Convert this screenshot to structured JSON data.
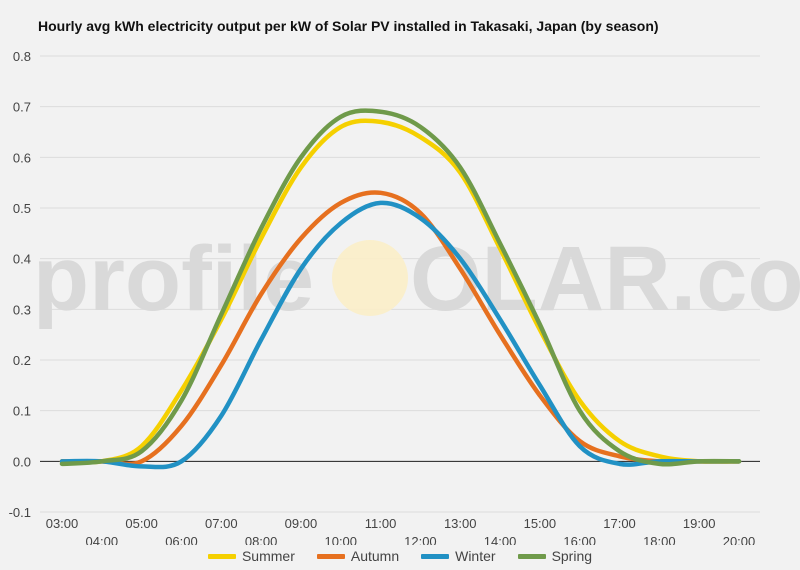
{
  "chart_data": {
    "type": "line",
    "title": "Hourly avg kWh electricity output per kW of Solar PV installed in Takasaki, Japan (by season)",
    "xlabel": "",
    "ylabel": "",
    "x": [
      "03:00",
      "04:00",
      "05:00",
      "06:00",
      "07:00",
      "08:00",
      "09:00",
      "10:00",
      "11:00",
      "12:00",
      "13:00",
      "14:00",
      "15:00",
      "16:00",
      "17:00",
      "18:00",
      "19:00",
      "20:00"
    ],
    "ylim": [
      -0.1,
      0.8
    ],
    "yticks": [
      "0.8",
      "0.7",
      "0.6",
      "0.5",
      "0.4",
      "0.3",
      "0.2",
      "0.1",
      "0.0",
      "-0.1"
    ],
    "grid": true,
    "legend_position": "bottom",
    "series": [
      {
        "name": "Summer",
        "color": "#f5d000",
        "values": [
          0.0,
          0.0,
          0.03,
          0.14,
          0.28,
          0.44,
          0.58,
          0.66,
          0.67,
          0.64,
          0.57,
          0.42,
          0.26,
          0.12,
          0.04,
          0.01,
          0.0,
          0.0
        ]
      },
      {
        "name": "Autumn",
        "color": "#e6701f",
        "values": [
          0.0,
          0.0,
          0.0,
          0.07,
          0.19,
          0.33,
          0.44,
          0.51,
          0.53,
          0.49,
          0.38,
          0.25,
          0.13,
          0.04,
          0.01,
          0.0,
          0.0,
          0.0
        ]
      },
      {
        "name": "Winter",
        "color": "#2191c4",
        "values": [
          0.0,
          0.0,
          -0.01,
          0.0,
          0.09,
          0.24,
          0.38,
          0.47,
          0.51,
          0.48,
          0.4,
          0.28,
          0.15,
          0.03,
          -0.005,
          0.0,
          0.0,
          0.0
        ]
      },
      {
        "name": "Spring",
        "color": "#6f9a4a",
        "values": [
          -0.005,
          0.0,
          0.02,
          0.12,
          0.29,
          0.46,
          0.6,
          0.68,
          0.69,
          0.66,
          0.58,
          0.43,
          0.27,
          0.1,
          0.02,
          -0.005,
          0.0,
          0.0
        ]
      }
    ]
  },
  "watermark": {
    "left": "profile",
    "sun_letter": "S",
    "right": "OLAR.com"
  }
}
